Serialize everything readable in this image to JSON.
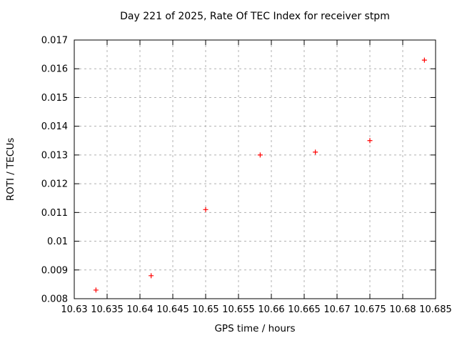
{
  "chart_data": {
    "type": "scatter",
    "title": "Day 221 of 2025, Rate Of TEC Index for receiver stpm",
    "xlabel": "GPS time / hours",
    "ylabel": "ROTI / TECUs",
    "xlim": [
      10.63,
      10.685
    ],
    "ylim": [
      0.008,
      0.017
    ],
    "xticks": [
      10.63,
      10.635,
      10.64,
      10.645,
      10.65,
      10.655,
      10.66,
      10.665,
      10.67,
      10.675,
      10.68,
      10.685
    ],
    "xtick_labels": [
      "10.63",
      "10.635",
      "10.64",
      "10.645",
      "10.65",
      "10.655",
      "10.66",
      "10.665",
      "10.67",
      "10.675",
      "10.68",
      "10.685"
    ],
    "yticks": [
      0.008,
      0.009,
      0.01,
      0.011,
      0.012,
      0.013,
      0.014,
      0.015,
      0.016,
      0.017
    ],
    "ytick_labels": [
      "0.008",
      "0.009",
      "0.01",
      "0.011",
      "0.012",
      "0.013",
      "0.014",
      "0.015",
      "0.016",
      "0.017"
    ],
    "grid": true,
    "legend": "none",
    "marker": {
      "shape": "plus",
      "color": "#ff0000",
      "size": 7
    },
    "series": [
      {
        "name": "ROTI",
        "points": [
          {
            "x": 10.6333,
            "y": 0.0083
          },
          {
            "x": 10.6417,
            "y": 0.0088
          },
          {
            "x": 10.65,
            "y": 0.0111
          },
          {
            "x": 10.6583,
            "y": 0.013
          },
          {
            "x": 10.6667,
            "y": 0.0131
          },
          {
            "x": 10.675,
            "y": 0.0135
          },
          {
            "x": 10.6833,
            "y": 0.0163
          }
        ]
      }
    ],
    "colors": {
      "background": "#ffffff",
      "axis": "#000000",
      "grid": "#b0b0b0",
      "text": "#000000"
    }
  }
}
